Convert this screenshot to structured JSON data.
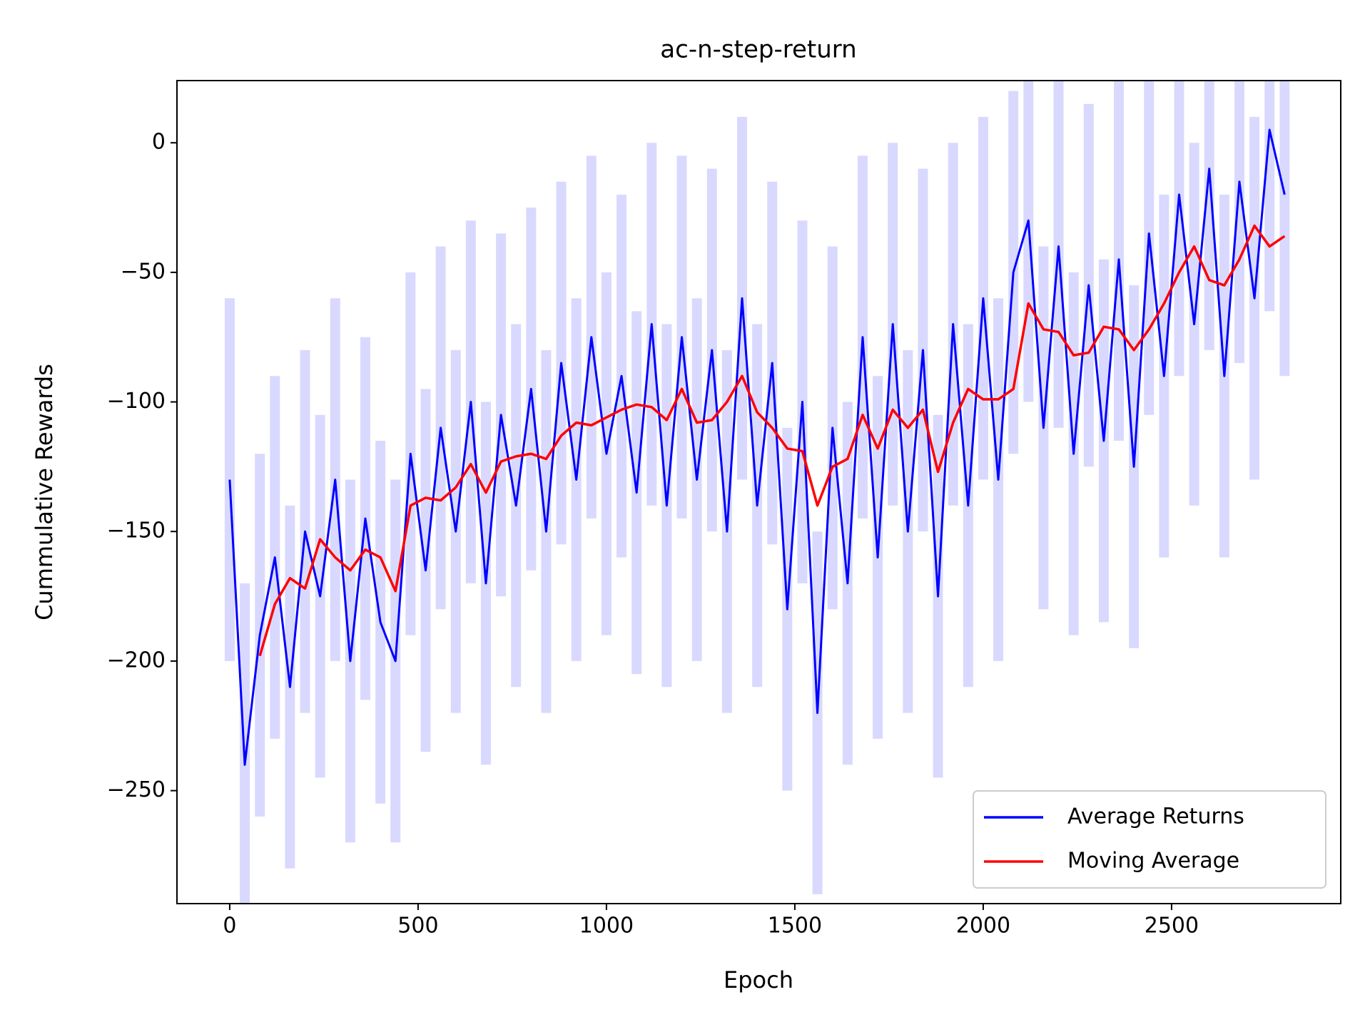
{
  "chart_data": {
    "type": "line",
    "title": "ac-n-step-return",
    "x_label": "Epoch",
    "y_label": "Cummulative Rewards",
    "x": [
      0,
      40,
      80,
      120,
      160,
      200,
      240,
      280,
      320,
      360,
      400,
      440,
      480,
      520,
      560,
      600,
      640,
      680,
      720,
      760,
      800,
      840,
      880,
      920,
      960,
      1000,
      1040,
      1080,
      1120,
      1160,
      1200,
      1240,
      1280,
      1320,
      1360,
      1400,
      1440,
      1480,
      1520,
      1560,
      1600,
      1640,
      1680,
      1720,
      1760,
      1800,
      1840,
      1880,
      1920,
      1960,
      2000,
      2040,
      2080,
      2120,
      2160,
      2200,
      2240,
      2280,
      2320,
      2360,
      2400,
      2440,
      2480,
      2520,
      2560,
      2600,
      2640,
      2680,
      2720,
      2760,
      2800
    ],
    "series": [
      {
        "name": "Average Returns",
        "color": "#0000ff",
        "values": [
          -130,
          -240,
          -190,
          -160,
          -210,
          -150,
          -175,
          -130,
          -200,
          -145,
          -185,
          -200,
          -120,
          -165,
          -110,
          -150,
          -100,
          -170,
          -105,
          -140,
          -95,
          -150,
          -85,
          -130,
          -75,
          -120,
          -90,
          -135,
          -70,
          -140,
          -75,
          -130,
          -80,
          -150,
          -60,
          -140,
          -85,
          -180,
          -100,
          -220,
          -110,
          -170,
          -75,
          -160,
          -70,
          -150,
          -80,
          -175,
          -70,
          -140,
          -60,
          -130,
          -50,
          -30,
          -110,
          -40,
          -120,
          -55,
          -115,
          -45,
          -125,
          -35,
          -90,
          -20,
          -70,
          -10,
          -90,
          -15,
          -60,
          5,
          -20
        ],
        "band": {
          "lower": [
            -200,
            -310,
            -260,
            -230,
            -280,
            -220,
            -245,
            -200,
            -270,
            -215,
            -255,
            -270,
            -190,
            -235,
            -180,
            -220,
            -170,
            -240,
            -175,
            -210,
            -165,
            -220,
            -155,
            -200,
            -145,
            -190,
            -160,
            -205,
            -140,
            -210,
            -145,
            -200,
            -150,
            -220,
            -130,
            -210,
            -155,
            -250,
            -170,
            -290,
            -180,
            -240,
            -145,
            -230,
            -140,
            -220,
            -150,
            -245,
            -140,
            -210,
            -130,
            -200,
            -120,
            -100,
            -180,
            -110,
            -190,
            -125,
            -185,
            -115,
            -195,
            -105,
            -160,
            -90,
            -140,
            -80,
            -160,
            -85,
            -130,
            -65,
            -90
          ],
          "upper": [
            -60,
            -170,
            -120,
            -90,
            -140,
            -80,
            -105,
            -60,
            -130,
            -75,
            -115,
            -130,
            -50,
            -95,
            -40,
            -80,
            -30,
            -100,
            -35,
            -70,
            -25,
            -80,
            -15,
            -60,
            -5,
            -50,
            -20,
            -65,
            0,
            -70,
            -5,
            -60,
            -10,
            -80,
            10,
            -70,
            -15,
            -110,
            -30,
            -150,
            -40,
            -100,
            -5,
            -90,
            0,
            -80,
            -10,
            -105,
            0,
            -70,
            10,
            -60,
            20,
            40,
            -40,
            30,
            -50,
            15,
            -45,
            25,
            -55,
            35,
            -20,
            50,
            0,
            60,
            -20,
            55,
            10,
            75,
            50
          ]
        }
      },
      {
        "name": "Moving Average",
        "color": "#ff0000",
        "values": [
          null,
          null,
          -198,
          -178,
          -168,
          -172,
          -153,
          -160,
          -165,
          -157,
          -160,
          -173,
          -140,
          -137,
          -138,
          -133,
          -124,
          -135,
          -123,
          -121,
          -120,
          -122,
          -113,
          -108,
          -109,
          -106,
          -103,
          -101,
          -102,
          -107,
          -95,
          -108,
          -107,
          -100,
          -90,
          -104,
          -110,
          -118,
          -119,
          -140,
          -125,
          -122,
          -105,
          -118,
          -103,
          -110,
          -103,
          -127,
          -108,
          -95,
          -99,
          -99,
          -95,
          -62,
          -72,
          -73,
          -82,
          -81,
          -71,
          -72,
          -80,
          -72,
          -62,
          -50,
          -40,
          -53,
          -55,
          -45,
          -32,
          -40,
          -36
        ]
      }
    ],
    "xlim": [
      -140,
      2949
    ],
    "ylim": [
      -293.6,
      24
    ],
    "xticks": [
      0,
      500,
      1000,
      1500,
      2000,
      2500
    ],
    "yticks": [
      {
        "value": -250,
        "label": "−250"
      },
      {
        "value": -200,
        "label": "−200"
      },
      {
        "value": -150,
        "label": "−150"
      },
      {
        "value": -100,
        "label": "−100"
      },
      {
        "value": -50,
        "label": "−50"
      },
      0
    ],
    "legend": "lower right"
  }
}
